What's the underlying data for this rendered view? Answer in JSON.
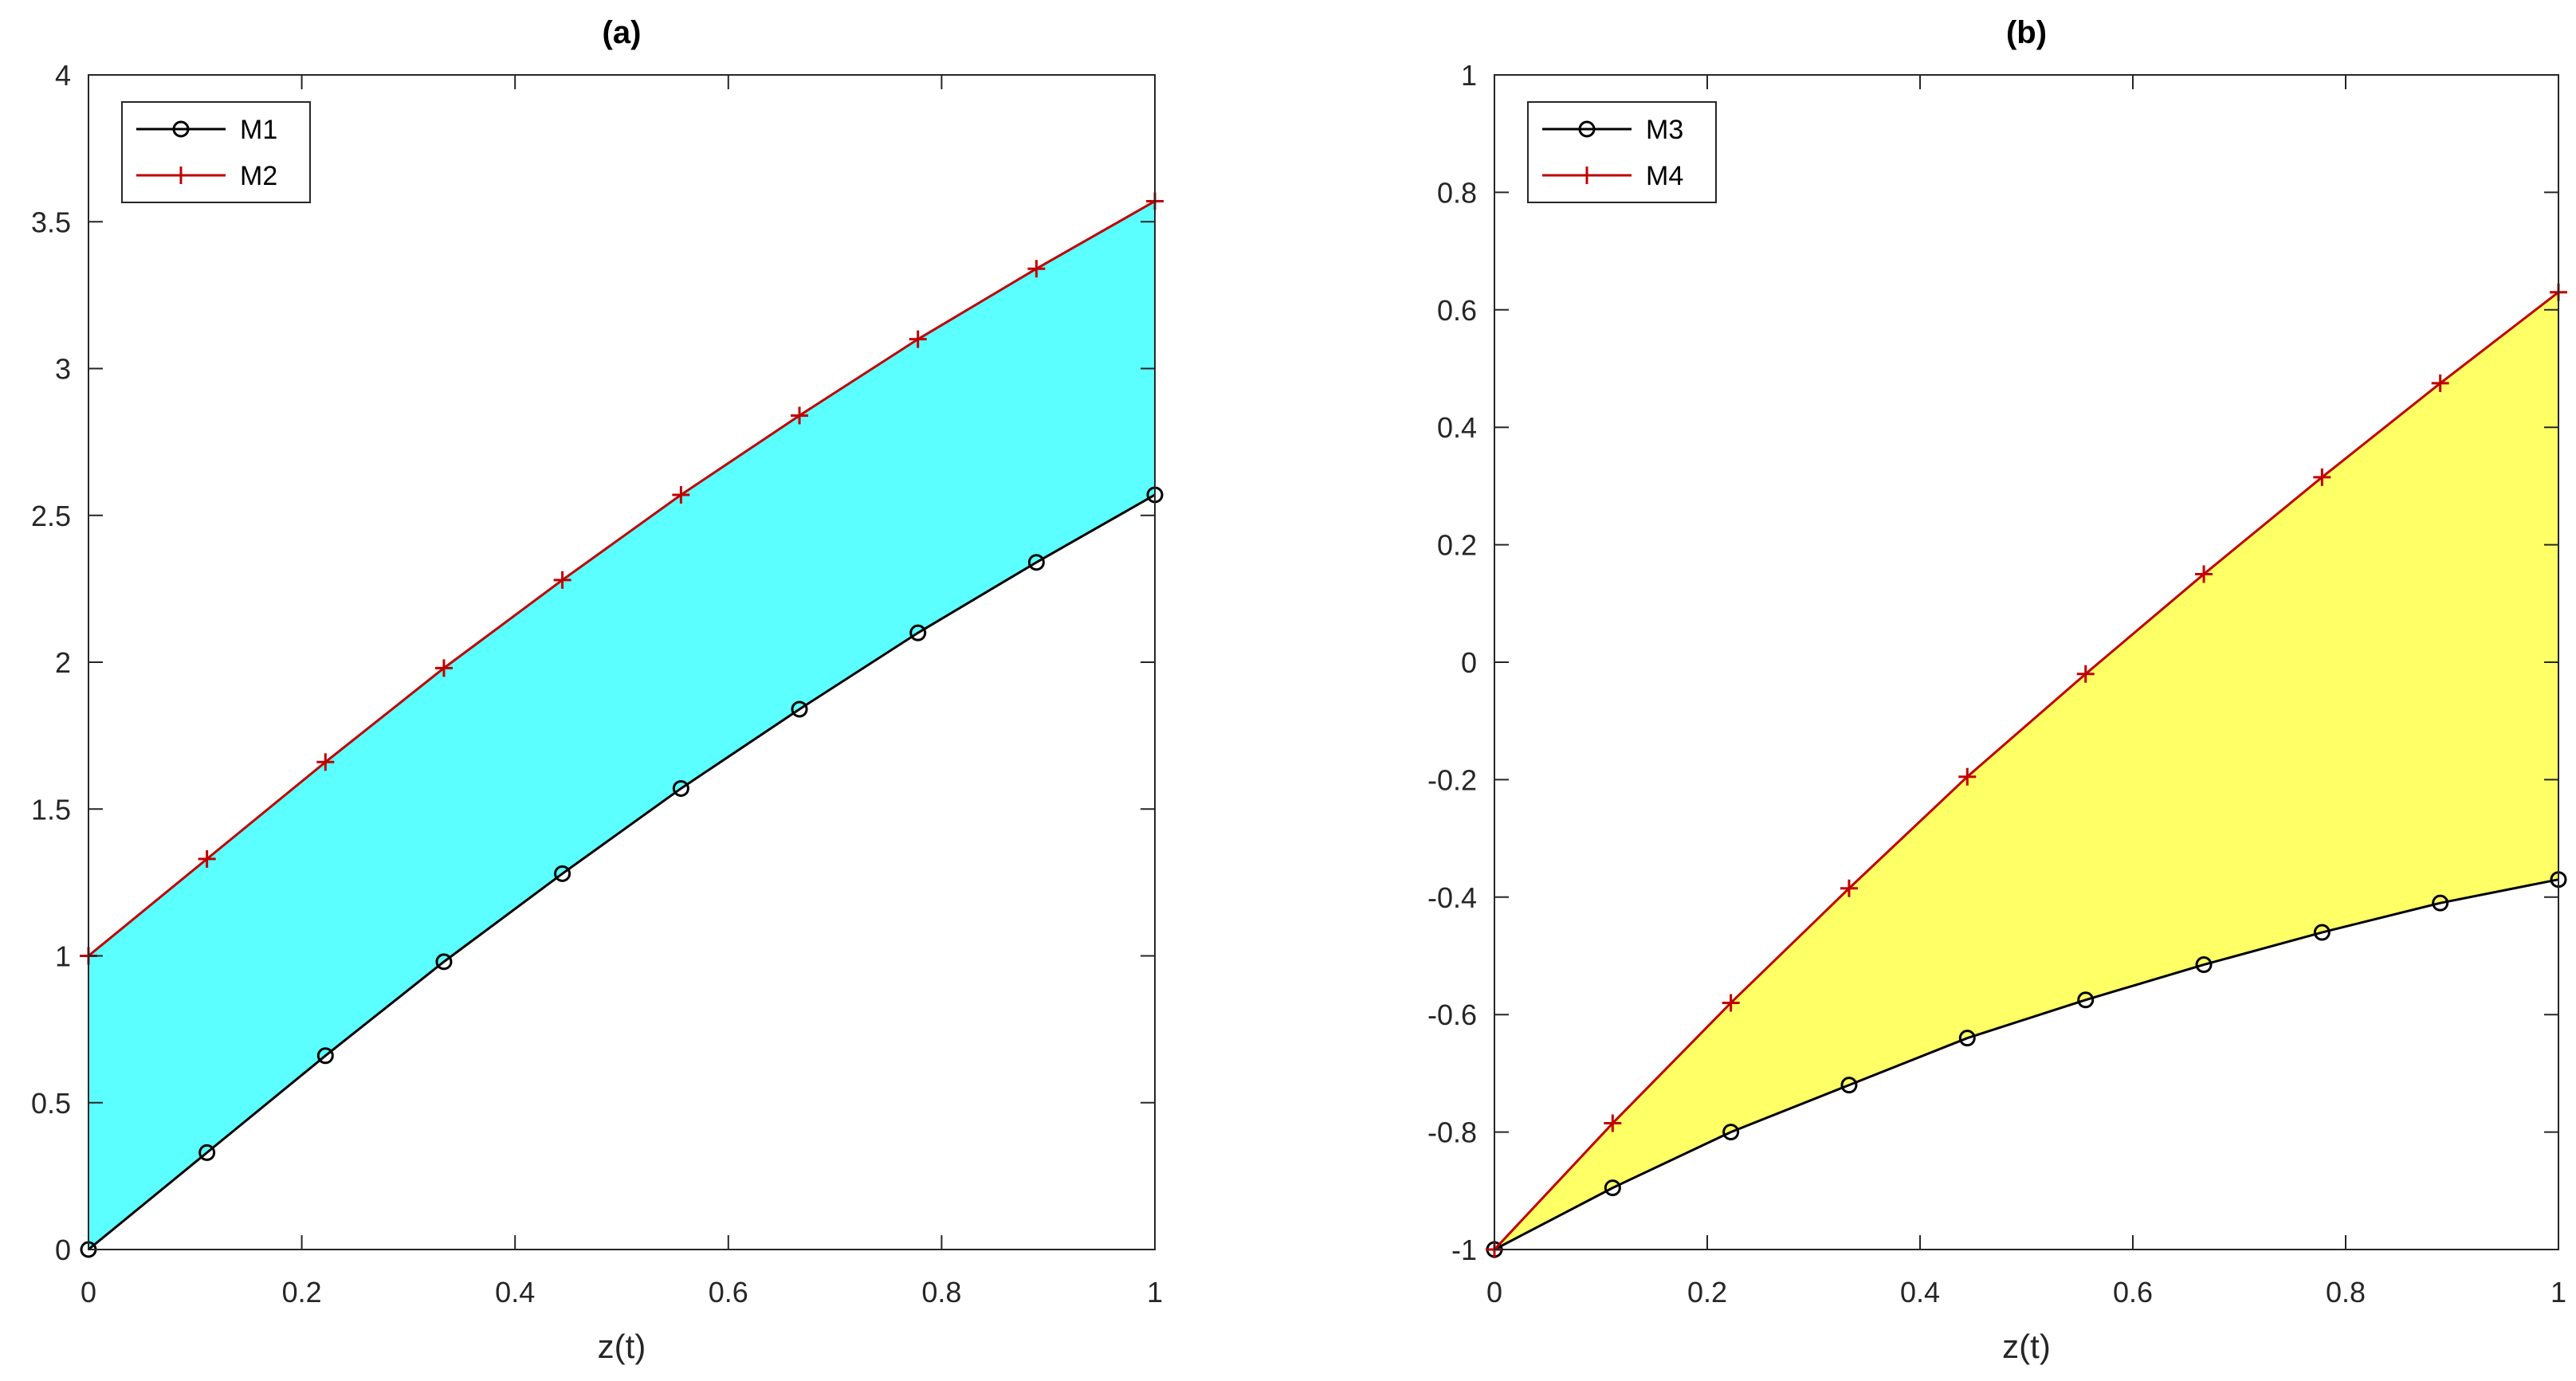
{
  "chart_data": [
    {
      "type": "area",
      "title": "(a)",
      "xlabel": "z(t)",
      "ylabel": "",
      "xlim": [
        0,
        1
      ],
      "ylim": [
        0,
        4
      ],
      "xticks": [
        0,
        0.2,
        0.4,
        0.6,
        0.8,
        1
      ],
      "xtick_labels": [
        "0",
        "0.2",
        "0.4",
        "0.6",
        "0.8",
        "1"
      ],
      "yticks": [
        0,
        0.5,
        1,
        1.5,
        2,
        2.5,
        3,
        3.5,
        4
      ],
      "ytick_labels": [
        "0",
        "0.5",
        "1",
        "1.5",
        "2",
        "2.5",
        "3",
        "3.5",
        "4"
      ],
      "grid": false,
      "legend_position": "top-left",
      "fill_color": "#5CFFFF",
      "x": [
        0,
        0.1111,
        0.2222,
        0.3333,
        0.4444,
        0.5556,
        0.6667,
        0.7778,
        0.8889,
        1
      ],
      "series": [
        {
          "name": "M1",
          "color": "#000000",
          "marker": "circle",
          "values": [
            0,
            0.33,
            0.66,
            0.98,
            1.28,
            1.57,
            1.84,
            2.1,
            2.34,
            2.57
          ]
        },
        {
          "name": "M2",
          "color": "#C00000",
          "marker": "plus",
          "values": [
            1.0,
            1.33,
            1.66,
            1.98,
            2.28,
            2.57,
            2.84,
            3.1,
            3.34,
            3.57
          ]
        }
      ]
    },
    {
      "type": "area",
      "title": "(b)",
      "xlabel": "z(t)",
      "ylabel": "",
      "xlim": [
        0,
        1
      ],
      "ylim": [
        -1,
        1
      ],
      "xticks": [
        0,
        0.2,
        0.4,
        0.6,
        0.8,
        1
      ],
      "xtick_labels": [
        "0",
        "0.2",
        "0.4",
        "0.6",
        "0.8",
        "1"
      ],
      "yticks": [
        -1,
        -0.8,
        -0.6,
        -0.4,
        -0.2,
        0,
        0.2,
        0.4,
        0.6,
        0.8,
        1
      ],
      "ytick_labels": [
        "-1",
        "-0.8",
        "-0.6",
        "-0.4",
        "-0.2",
        "0",
        "0.2",
        "0.4",
        "0.6",
        "0.8",
        "1"
      ],
      "grid": false,
      "legend_position": "top-left",
      "fill_color": "#FFFF66",
      "x": [
        0,
        0.1111,
        0.2222,
        0.3333,
        0.4444,
        0.5556,
        0.6667,
        0.7778,
        0.8889,
        1
      ],
      "series": [
        {
          "name": "M3",
          "color": "#000000",
          "marker": "circle",
          "values": [
            -1.0,
            -0.895,
            -0.8,
            -0.72,
            -0.64,
            -0.575,
            -0.515,
            -0.46,
            -0.41,
            -0.37
          ]
        },
        {
          "name": "M4",
          "color": "#C00000",
          "marker": "plus",
          "values": [
            -1.0,
            -0.785,
            -0.58,
            -0.385,
            -0.195,
            -0.02,
            0.15,
            0.315,
            0.475,
            0.63
          ]
        }
      ]
    }
  ]
}
